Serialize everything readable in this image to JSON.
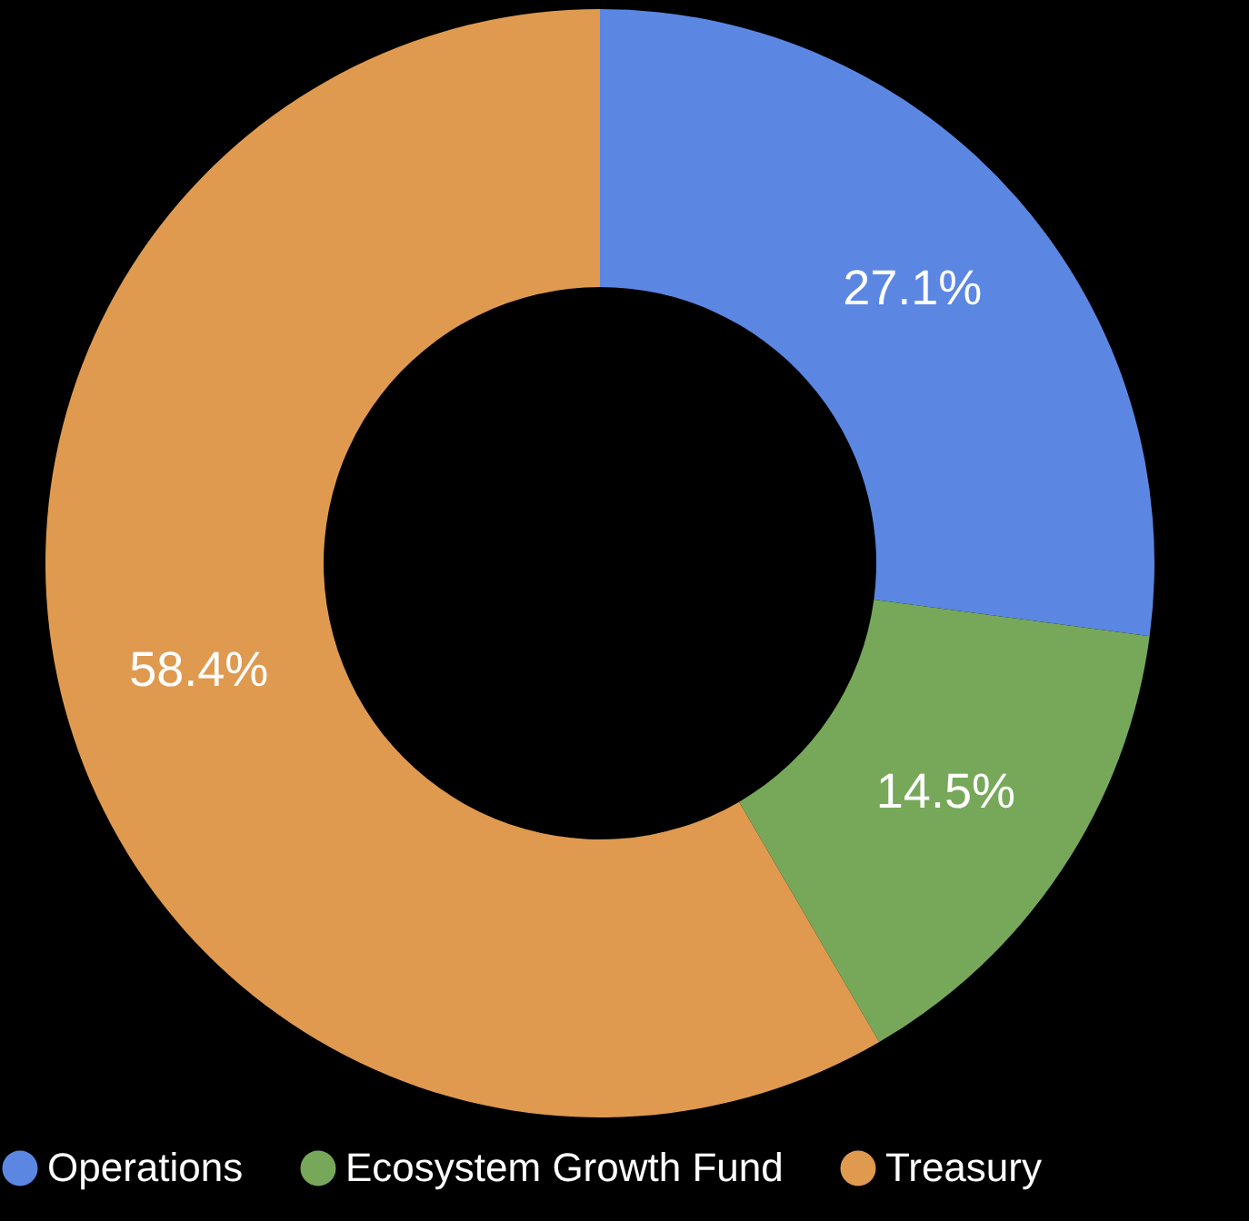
{
  "chart_data": {
    "type": "donut",
    "categories": [
      "Operations",
      "Ecosystem Growth Fund",
      "Treasury"
    ],
    "values": [
      27.1,
      14.5,
      58.4
    ],
    "colors": [
      "#5b87e3",
      "#77a85a",
      "#df9a50"
    ],
    "value_labels": [
      "27.1%",
      "14.5%",
      "58.4%"
    ],
    "legend": "bottom"
  }
}
